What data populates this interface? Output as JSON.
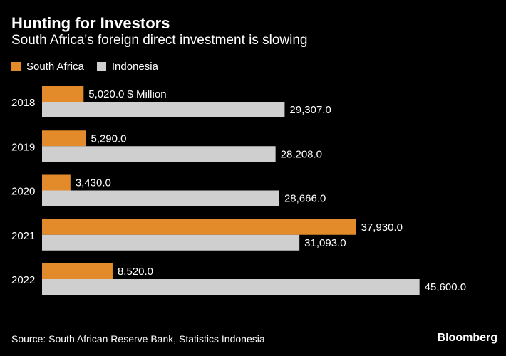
{
  "chart_data": {
    "type": "bar",
    "orientation": "horizontal",
    "title": "Hunting for Investors",
    "subtitle": "South Africa's foreign direct investment is slowing",
    "categories": [
      "2018",
      "2019",
      "2020",
      "2021",
      "2022"
    ],
    "series": [
      {
        "name": "South Africa",
        "color": "#e38a2b",
        "values": [
          5020.0,
          5290.0,
          3430.0,
          37930.0,
          8520.0
        ],
        "labels": [
          "5,020.0 $ Million",
          "5,290.0",
          "3,430.0",
          "37,930.0",
          "8,520.0"
        ]
      },
      {
        "name": "Indonesia",
        "color": "#cfcfcf",
        "values": [
          29307.0,
          28208.0,
          28666.0,
          31093.0,
          45600.0
        ],
        "labels": [
          "29,307.0",
          "28,208.0",
          "28,666.0",
          "31,093.0",
          "45,600.0"
        ]
      }
    ],
    "xlim": [
      0,
      52000
    ],
    "grid": false,
    "legend_position": "top-left",
    "source": "Source: South African Reserve Bank, Statistics Indonesia",
    "brand": "Bloomberg"
  }
}
